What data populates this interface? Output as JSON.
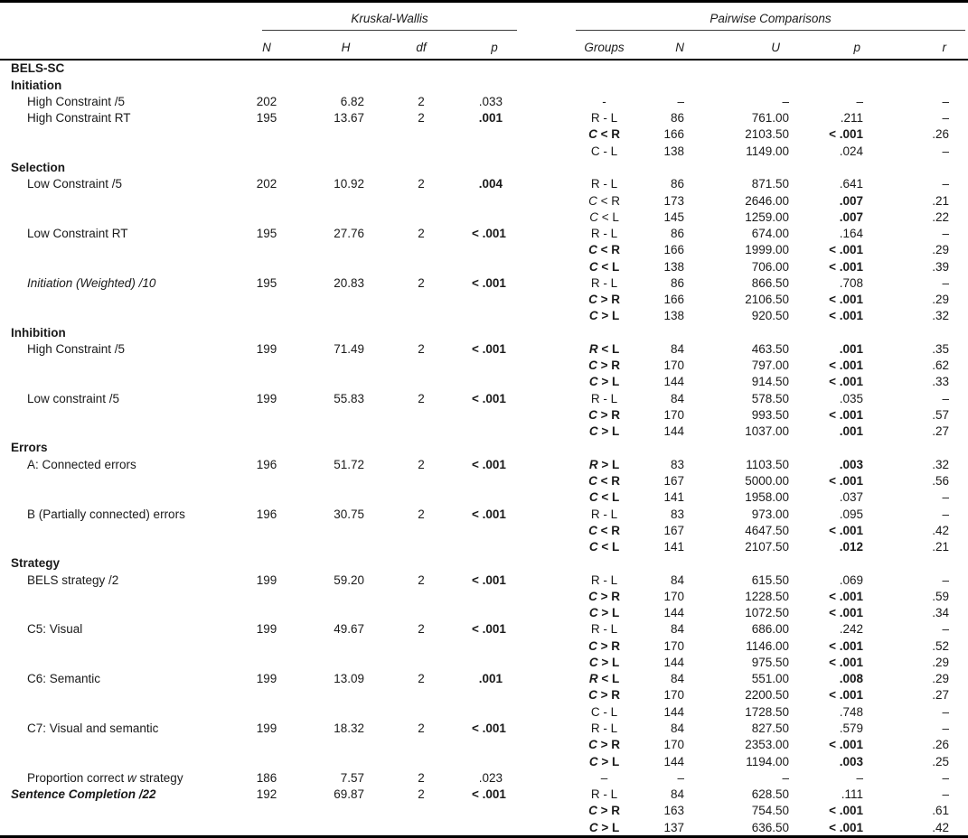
{
  "table": {
    "kw_title": "Kruskal-Wallis",
    "pw_title": "Pairwise Comparisons",
    "kw_cols": [
      "N",
      "H",
      "df",
      "p"
    ],
    "pw_cols": [
      "Groups",
      "N",
      "U",
      "p",
      "r"
    ],
    "text_color": "#1a1a1a",
    "rule_color": "#000000",
    "rows": [
      {
        "l": [
          [
            "BELS-SC",
            "b"
          ]
        ],
        "ind": false
      },
      {
        "l": [
          [
            "Initiation",
            "b"
          ]
        ],
        "ind": false
      },
      {
        "l": [
          [
            "High Constraint /5",
            "n"
          ]
        ],
        "ind": true,
        "kw": [
          "202",
          "6.82",
          "2",
          ".033",
          false
        ],
        "pw": [
          [
            [
              "-",
              "n"
            ]
          ],
          "–",
          "–",
          "–",
          false,
          "–"
        ]
      },
      {
        "l": [
          [
            "High Constraint RT",
            "n"
          ]
        ],
        "ind": true,
        "kw": [
          "195",
          "13.67",
          "2",
          ".001",
          true
        ],
        "pw": [
          [
            [
              "R - L",
              "n"
            ]
          ],
          "86",
          "761.00",
          ".211",
          false,
          "–"
        ]
      },
      {
        "l": null,
        "pw": [
          [
            [
              "C",
              "bi"
            ],
            [
              " < ",
              "b"
            ],
            [
              "R",
              "b"
            ]
          ],
          "166",
          "2103.50",
          "< .001",
          true,
          ".26"
        ]
      },
      {
        "l": null,
        "pw": [
          [
            [
              "C - L",
              "n"
            ]
          ],
          "138",
          "1149.00",
          ".024",
          false,
          "–"
        ]
      },
      {
        "l": [
          [
            "Selection",
            "b"
          ]
        ],
        "ind": false
      },
      {
        "l": [
          [
            "Low Constraint /5",
            "n"
          ]
        ],
        "ind": true,
        "kw": [
          "202",
          "10.92",
          "2",
          ".004",
          true
        ],
        "pw": [
          [
            [
              "R - L",
              "n"
            ]
          ],
          "86",
          "871.50",
          ".641",
          false,
          "–"
        ]
      },
      {
        "l": null,
        "pw": [
          [
            [
              "C",
              "i"
            ],
            [
              " < ",
              "n"
            ],
            [
              "R",
              "n"
            ]
          ],
          "173",
          "2646.00",
          ".007",
          true,
          ".21"
        ]
      },
      {
        "l": null,
        "pw": [
          [
            [
              "C",
              "i"
            ],
            [
              " < ",
              "n"
            ],
            [
              "L",
              "n"
            ]
          ],
          "145",
          "1259.00",
          ".007",
          true,
          ".22"
        ]
      },
      {
        "l": [
          [
            "Low Constraint RT",
            "n"
          ]
        ],
        "ind": true,
        "kw": [
          "195",
          "27.76",
          "2",
          "< .001",
          true
        ],
        "pw": [
          [
            [
              "R - L",
              "n"
            ]
          ],
          "86",
          "674.00",
          ".164",
          false,
          "–"
        ]
      },
      {
        "l": null,
        "pw": [
          [
            [
              "C",
              "bi"
            ],
            [
              " < ",
              "b"
            ],
            [
              "R",
              "b"
            ]
          ],
          "166",
          "1999.00",
          "< .001",
          true,
          ".29"
        ]
      },
      {
        "l": null,
        "pw": [
          [
            [
              "C",
              "bi"
            ],
            [
              " < ",
              "b"
            ],
            [
              "L",
              "b"
            ]
          ],
          "138",
          "706.00",
          "< .001",
          true,
          ".39"
        ]
      },
      {
        "l": [
          [
            "Initiation (Weighted) /10",
            "i"
          ]
        ],
        "ind": true,
        "kw": [
          "195",
          "20.83",
          "2",
          "< .001",
          true
        ],
        "pw": [
          [
            [
              "R - L",
              "n"
            ]
          ],
          "86",
          "866.50",
          ".708",
          false,
          "–"
        ]
      },
      {
        "l": null,
        "pw": [
          [
            [
              "C",
              "bi"
            ],
            [
              " > ",
              "b"
            ],
            [
              "R",
              "b"
            ]
          ],
          "166",
          "2106.50",
          "< .001",
          true,
          ".29"
        ]
      },
      {
        "l": null,
        "pw": [
          [
            [
              "C",
              "bi"
            ],
            [
              " > ",
              "b"
            ],
            [
              "L",
              "b"
            ]
          ],
          "138",
          "920.50",
          "< .001",
          true,
          ".32"
        ]
      },
      {
        "l": [
          [
            "Inhibition",
            "b"
          ]
        ],
        "ind": false
      },
      {
        "l": [
          [
            "High Constraint /5",
            "n"
          ]
        ],
        "ind": true,
        "kw": [
          "199",
          "71.49",
          "2",
          "< .001",
          true
        ],
        "pw": [
          [
            [
              "R",
              "bi"
            ],
            [
              " < ",
              "b"
            ],
            [
              "L",
              "b"
            ]
          ],
          "84",
          "463.50",
          ".001",
          true,
          ".35"
        ]
      },
      {
        "l": null,
        "pw": [
          [
            [
              "C",
              "bi"
            ],
            [
              " > ",
              "b"
            ],
            [
              "R",
              "b"
            ]
          ],
          "170",
          "797.00",
          "< .001",
          true,
          ".62"
        ]
      },
      {
        "l": null,
        "pw": [
          [
            [
              "C",
              "bi"
            ],
            [
              " > ",
              "b"
            ],
            [
              "L",
              "b"
            ]
          ],
          "144",
          "914.50",
          "< .001",
          true,
          ".33"
        ]
      },
      {
        "l": [
          [
            "Low constraint /5",
            "n"
          ]
        ],
        "ind": true,
        "kw": [
          "199",
          "55.83",
          "2",
          "< .001",
          true
        ],
        "pw": [
          [
            [
              "R - L",
              "n"
            ]
          ],
          "84",
          "578.50",
          ".035",
          false,
          "–"
        ]
      },
      {
        "l": null,
        "pw": [
          [
            [
              "C",
              "bi"
            ],
            [
              " > ",
              "b"
            ],
            [
              "R",
              "b"
            ]
          ],
          "170",
          "993.50",
          "< .001",
          true,
          ".57"
        ]
      },
      {
        "l": null,
        "pw": [
          [
            [
              "C",
              "bi"
            ],
            [
              " > ",
              "b"
            ],
            [
              "L",
              "b"
            ]
          ],
          "144",
          "1037.00",
          ".001",
          true,
          ".27"
        ]
      },
      {
        "l": [
          [
            "Errors",
            "b"
          ]
        ],
        "ind": false
      },
      {
        "l": [
          [
            "A: Connected errors",
            "n"
          ]
        ],
        "ind": true,
        "kw": [
          "196",
          "51.72",
          "2",
          "< .001",
          true
        ],
        "pw": [
          [
            [
              "R",
              "bi"
            ],
            [
              " > ",
              "b"
            ],
            [
              "L",
              "b"
            ]
          ],
          "83",
          "1103.50",
          ".003",
          true,
          ".32"
        ]
      },
      {
        "l": null,
        "pw": [
          [
            [
              "C",
              "bi"
            ],
            [
              " < ",
              "b"
            ],
            [
              "R",
              "b"
            ]
          ],
          "167",
          "5000.00",
          "< .001",
          true,
          ".56"
        ]
      },
      {
        "l": null,
        "pw": [
          [
            [
              "C",
              "bi"
            ],
            [
              " < ",
              "b"
            ],
            [
              "L",
              "b"
            ]
          ],
          "141",
          "1958.00",
          ".037",
          false,
          "–"
        ]
      },
      {
        "l": [
          [
            "B (Partially connected) errors",
            "n"
          ]
        ],
        "ind": true,
        "kw": [
          "196",
          "30.75",
          "2",
          "< .001",
          true
        ],
        "pw": [
          [
            [
              "R - L",
              "n"
            ]
          ],
          "83",
          "973.00",
          ".095",
          false,
          "–"
        ]
      },
      {
        "l": null,
        "pw": [
          [
            [
              "C",
              "bi"
            ],
            [
              " < ",
              "b"
            ],
            [
              "R",
              "b"
            ]
          ],
          "167",
          "4647.50",
          "< .001",
          true,
          ".42"
        ]
      },
      {
        "l": null,
        "pw": [
          [
            [
              "C",
              "bi"
            ],
            [
              " < ",
              "b"
            ],
            [
              "L",
              "b"
            ]
          ],
          "141",
          "2107.50",
          ".012",
          true,
          ".21"
        ]
      },
      {
        "l": [
          [
            "Strategy",
            "b"
          ]
        ],
        "ind": false
      },
      {
        "l": [
          [
            "BELS strategy /2",
            "n"
          ]
        ],
        "ind": true,
        "kw": [
          "199",
          "59.20",
          "2",
          "< .001",
          true
        ],
        "pw": [
          [
            [
              "R - L",
              "n"
            ]
          ],
          "84",
          "615.50",
          ".069",
          false,
          "–"
        ]
      },
      {
        "l": null,
        "pw": [
          [
            [
              "C",
              "bi"
            ],
            [
              " > ",
              "b"
            ],
            [
              "R",
              "b"
            ]
          ],
          "170",
          "1228.50",
          "< .001",
          true,
          ".59"
        ]
      },
      {
        "l": null,
        "pw": [
          [
            [
              "C",
              "bi"
            ],
            [
              " > ",
              "b"
            ],
            [
              "L",
              "b"
            ]
          ],
          "144",
          "1072.50",
          "< .001",
          true,
          ".34"
        ]
      },
      {
        "l": [
          [
            "C5: Visual",
            "n"
          ]
        ],
        "ind": true,
        "kw": [
          "199",
          "49.67",
          "2",
          "< .001",
          true
        ],
        "pw": [
          [
            [
              "R - L",
              "n"
            ]
          ],
          "84",
          "686.00",
          ".242",
          false,
          "–"
        ]
      },
      {
        "l": null,
        "pw": [
          [
            [
              "C",
              "bi"
            ],
            [
              " > ",
              "b"
            ],
            [
              "R",
              "b"
            ]
          ],
          "170",
          "1146.00",
          "< .001",
          true,
          ".52"
        ]
      },
      {
        "l": null,
        "pw": [
          [
            [
              "C",
              "bi"
            ],
            [
              " > ",
              "b"
            ],
            [
              "L",
              "b"
            ]
          ],
          "144",
          "975.50",
          "< .001",
          true,
          ".29"
        ]
      },
      {
        "l": [
          [
            "C6: Semantic",
            "n"
          ]
        ],
        "ind": true,
        "kw": [
          "199",
          "13.09",
          "2",
          ".001",
          true
        ],
        "pw": [
          [
            [
              "R",
              "bi"
            ],
            [
              " < ",
              "b"
            ],
            [
              "L",
              "b"
            ]
          ],
          "84",
          "551.00",
          ".008",
          true,
          ".29"
        ]
      },
      {
        "l": null,
        "pw": [
          [
            [
              "C",
              "bi"
            ],
            [
              " > ",
              "b"
            ],
            [
              "R",
              "b"
            ]
          ],
          "170",
          "2200.50",
          "< .001",
          true,
          ".27"
        ]
      },
      {
        "l": null,
        "pw": [
          [
            [
              "C - L",
              "n"
            ]
          ],
          "144",
          "1728.50",
          ".748",
          false,
          "–"
        ]
      },
      {
        "l": [
          [
            "C7: Visual and semantic",
            "n"
          ]
        ],
        "ind": true,
        "kw": [
          "199",
          "18.32",
          "2",
          "< .001",
          true
        ],
        "pw": [
          [
            [
              "R - L",
              "n"
            ]
          ],
          "84",
          "827.50",
          ".579",
          false,
          "–"
        ]
      },
      {
        "l": null,
        "pw": [
          [
            [
              "C",
              "bi"
            ],
            [
              " > ",
              "b"
            ],
            [
              "R",
              "b"
            ]
          ],
          "170",
          "2353.00",
          "< .001",
          true,
          ".26"
        ]
      },
      {
        "l": null,
        "pw": [
          [
            [
              "C",
              "bi"
            ],
            [
              " > ",
              "b"
            ],
            [
              "L",
              "b"
            ]
          ],
          "144",
          "1194.00",
          ".003",
          true,
          ".25"
        ]
      },
      {
        "l": [
          [
            "Proportion correct ",
            "n"
          ],
          [
            "w",
            "i"
          ],
          [
            " strategy",
            "n"
          ]
        ],
        "ind": true,
        "kw": [
          "186",
          "7.57",
          "2",
          ".023",
          false
        ],
        "pw": [
          [
            [
              "–",
              "n"
            ]
          ],
          "–",
          "–",
          "–",
          false,
          "–"
        ]
      },
      {
        "l": [
          [
            "Sentence Completion /22",
            "bi"
          ]
        ],
        "ind": false,
        "kw": [
          "192",
          "69.87",
          "2",
          "< .001",
          true
        ],
        "pw": [
          [
            [
              "R - L",
              "n"
            ]
          ],
          "84",
          "628.50",
          ".111",
          false,
          "–"
        ]
      },
      {
        "l": null,
        "pw": [
          [
            [
              "C",
              "bi"
            ],
            [
              " > ",
              "b"
            ],
            [
              "R",
              "b"
            ]
          ],
          "163",
          "754.50",
          "< .001",
          true,
          ".61"
        ]
      },
      {
        "l": null,
        "pw": [
          [
            [
              "C",
              "bi"
            ],
            [
              " > ",
              "b"
            ],
            [
              "L",
              "b"
            ]
          ],
          "137",
          "636.50",
          "< .001",
          true,
          ".42"
        ]
      }
    ]
  }
}
